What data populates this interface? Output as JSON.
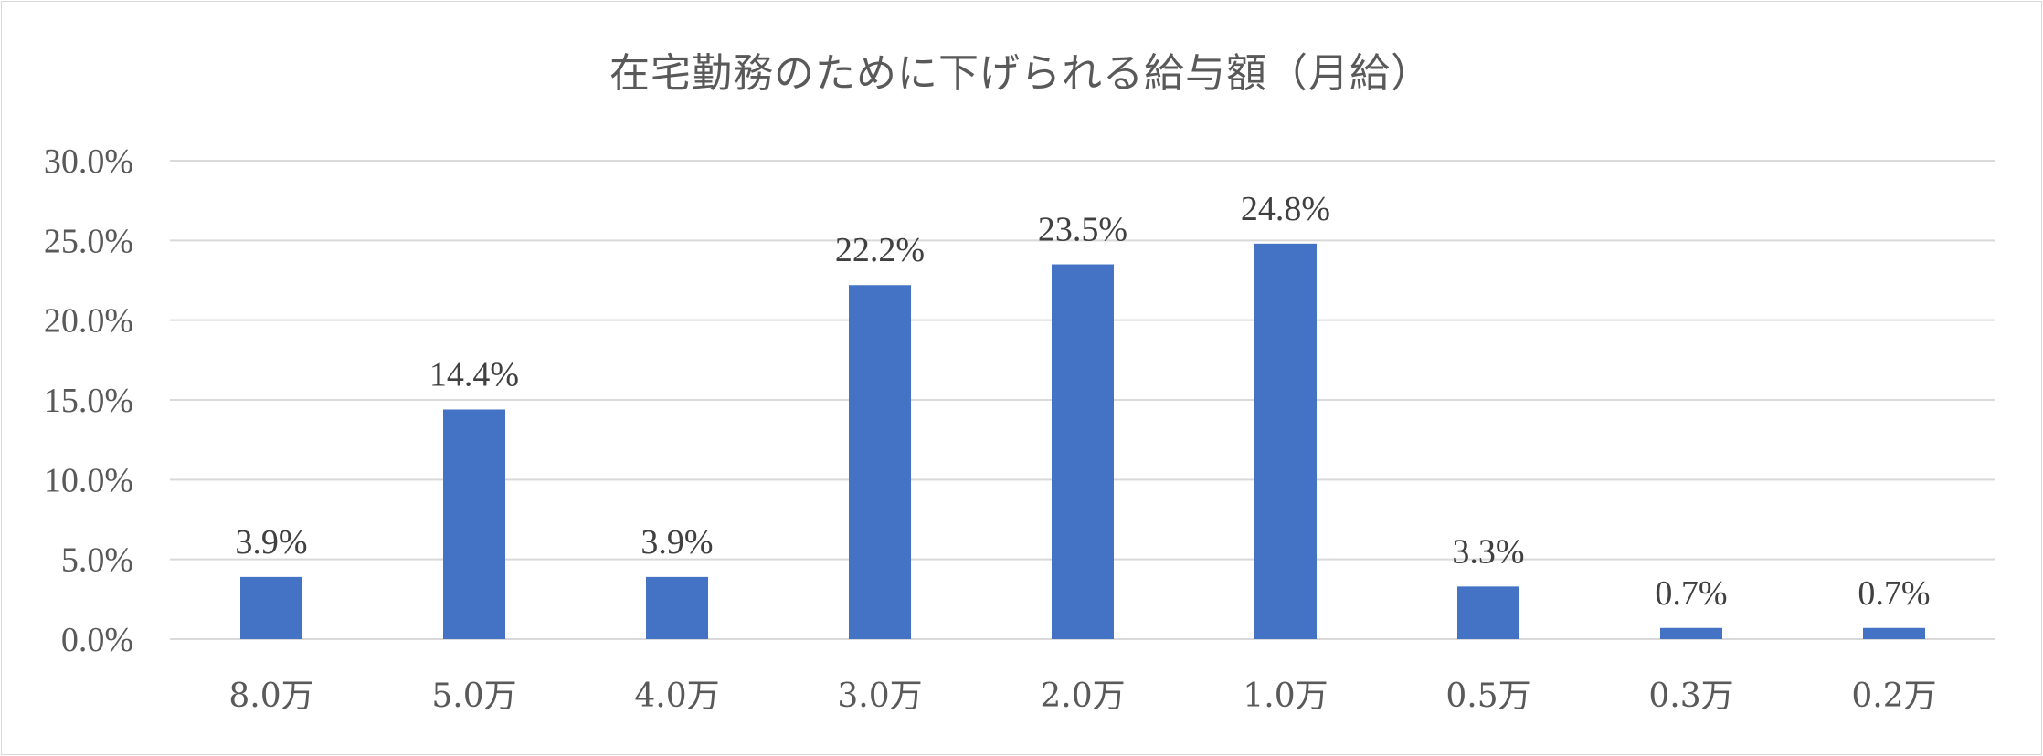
{
  "chart_data": {
    "type": "bar",
    "title": "在宅勤務のために下げられる給与額（月給）",
    "categories": [
      "8.0万",
      "5.0万",
      "4.0万",
      "3.0万",
      "2.0万",
      "1.0万",
      "0.5万",
      "0.3万",
      "0.2万"
    ],
    "values": [
      3.9,
      14.4,
      3.9,
      22.2,
      23.5,
      24.8,
      3.3,
      0.7,
      0.7
    ],
    "data_labels": [
      "3.9%",
      "14.4%",
      "3.9%",
      "22.2%",
      "23.5%",
      "24.8%",
      "3.3%",
      "0.7%",
      "0.7%"
    ],
    "y_ticks": [
      "0.0%",
      "5.0%",
      "10.0%",
      "15.0%",
      "20.0%",
      "25.0%",
      "30.0%"
    ],
    "ylim": [
      0,
      30
    ],
    "y_step": 5,
    "grid": true,
    "legend": "none",
    "colors": {
      "bar": "#4472C4",
      "grid": "#d9d9d9"
    }
  }
}
